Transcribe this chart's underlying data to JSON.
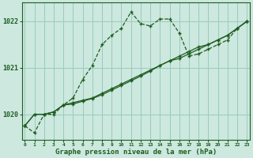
{
  "hours": [
    0,
    1,
    2,
    3,
    4,
    5,
    6,
    7,
    8,
    9,
    10,
    11,
    12,
    13,
    14,
    15,
    16,
    17,
    18,
    19,
    20,
    21,
    22,
    23
  ],
  "line_dotted": [
    1019.75,
    1019.6,
    1020.0,
    1020.0,
    1020.2,
    1020.35,
    1020.75,
    1021.05,
    1021.5,
    1021.7,
    1021.85,
    1022.2,
    1021.95,
    1021.9,
    1022.05,
    1022.05,
    1021.75,
    1021.25,
    1021.3,
    1021.4,
    1021.5,
    1021.6,
    1021.85,
    1022.0
  ],
  "line_solid1": [
    1019.75,
    1020.0,
    1020.0,
    1020.05,
    1020.2,
    1020.25,
    1020.3,
    1020.35,
    1020.45,
    1020.55,
    1020.65,
    1020.75,
    1020.85,
    1020.95,
    1021.05,
    1021.15,
    1021.25,
    1021.35,
    1021.45,
    1021.5,
    1021.6,
    1021.7,
    1021.85,
    1022.0
  ],
  "line_solid2": [
    1019.75,
    1020.0,
    1020.0,
    1020.05,
    1020.2,
    1020.22,
    1020.28,
    1020.34,
    1020.42,
    1020.52,
    1020.62,
    1020.72,
    1020.82,
    1020.93,
    1021.05,
    1021.15,
    1021.2,
    1021.3,
    1021.4,
    1021.5,
    1021.6,
    1021.7,
    1021.85,
    1022.0
  ],
  "bg_color": "#cce8df",
  "grid_color": "#99ccbb",
  "line_color": "#1e5c1e",
  "xlabel": "Graphe pression niveau de la mer (hPa)",
  "ylabel_ticks": [
    1020,
    1021,
    1022
  ],
  "ylim": [
    1019.45,
    1022.4
  ],
  "xlim": [
    -0.3,
    23.3
  ]
}
